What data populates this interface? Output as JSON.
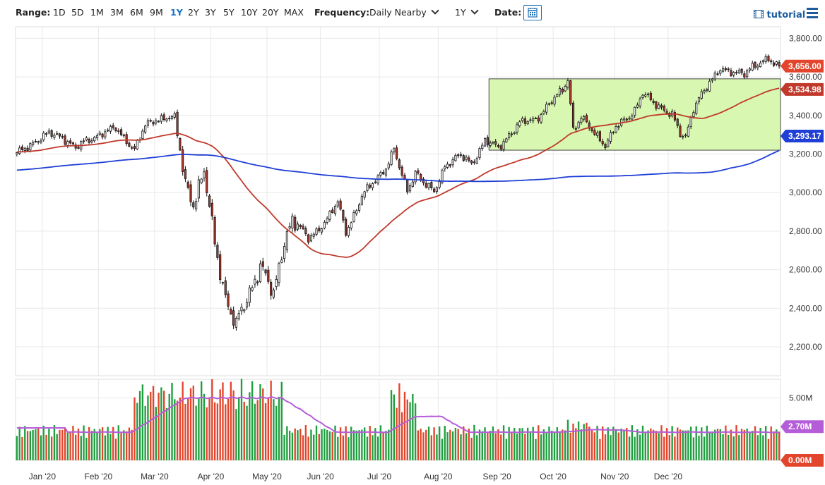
{
  "toolbar": {
    "range_label": "Range:",
    "ranges": [
      "1D",
      "5D",
      "1M",
      "3M",
      "6M",
      "9M",
      "1Y",
      "2Y",
      "3Y",
      "5Y",
      "10Y",
      "20Y",
      "MAX"
    ],
    "active_range": "1Y",
    "frequency_label": "Frequency:",
    "frequency_value": "Daily Nearby",
    "period_value": "1Y",
    "date_label": "Date:",
    "tutorial_label": "tutorial"
  },
  "chart_data": {
    "type": "candlestick",
    "price_axis": {
      "min": 2050,
      "max": 3860,
      "ticks": [
        3800,
        3600,
        3400,
        3200,
        3000,
        2800,
        2600,
        2400,
        2200
      ],
      "tick_labels": [
        "3,800.00",
        "3,600.00",
        "3,400.00",
        "3,200.00",
        "3,000.00",
        "2,800.00",
        "2,600.00",
        "2,400.00",
        "2,200.00"
      ]
    },
    "volume_axis": {
      "min": 0,
      "max": 6.5,
      "tick_label": "5.00M",
      "tick_value": 5.0
    },
    "x_labels": [
      "Jan '20",
      "Feb '20",
      "Mar '20",
      "Apr '20",
      "May '20",
      "Jun '20",
      "Jul '20",
      "Aug '20",
      "Sep '20",
      "Oct '20",
      "Nov '20",
      "Dec '20"
    ],
    "price_anchors": [
      [
        0,
        3200
      ],
      [
        6,
        3260
      ],
      [
        12,
        3305
      ],
      [
        17,
        3290
      ],
      [
        22,
        3230
      ],
      [
        25,
        3260
      ],
      [
        32,
        3310
      ],
      [
        37,
        3332
      ],
      [
        44,
        3225
      ],
      [
        48,
        3345
      ],
      [
        52,
        3380
      ],
      [
        56,
        3390
      ],
      [
        59,
        3385
      ],
      [
        63,
        3050
      ],
      [
        66,
        2950
      ],
      [
        70,
        3100
      ],
      [
        74,
        2740
      ],
      [
        78,
        2460
      ],
      [
        82,
        2300
      ],
      [
        83,
        2350
      ],
      [
        87,
        2480
      ],
      [
        91,
        2630
      ],
      [
        96,
        2460
      ],
      [
        100,
        2760
      ],
      [
        103,
        2860
      ],
      [
        105,
        2830
      ],
      [
        109,
        2760
      ],
      [
        114,
        2830
      ],
      [
        116,
        2860
      ],
      [
        120,
        2950
      ],
      [
        123,
        2800
      ],
      [
        127,
        2910
      ],
      [
        129,
        2980
      ],
      [
        133,
        3050
      ],
      [
        138,
        3130
      ],
      [
        141,
        3220
      ],
      [
        143,
        3130
      ],
      [
        146,
        3010
      ],
      [
        149,
        3110
      ],
      [
        152,
        3050
      ],
      [
        156,
        3000
      ],
      [
        160,
        3140
      ],
      [
        163,
        3170
      ],
      [
        166,
        3190
      ],
      [
        170,
        3150
      ],
      [
        175,
        3270
      ],
      [
        180,
        3230
      ],
      [
        184,
        3300
      ],
      [
        188,
        3360
      ],
      [
        194,
        3380
      ],
      [
        199,
        3460
      ],
      [
        204,
        3530
      ],
      [
        206,
        3590
      ],
      [
        208,
        3330
      ],
      [
        211,
        3390
      ],
      [
        215,
        3320
      ],
      [
        220,
        3250
      ],
      [
        224,
        3340
      ],
      [
        228,
        3380
      ],
      [
        231,
        3430
      ],
      [
        234,
        3520
      ],
      [
        238,
        3460
      ],
      [
        242,
        3430
      ],
      [
        245,
        3410
      ],
      [
        248,
        3300
      ],
      [
        250,
        3280
      ],
      [
        253,
        3440
      ],
      [
        256,
        3520
      ],
      [
        260,
        3580
      ],
      [
        263,
        3640
      ],
      [
        268,
        3630
      ],
      [
        272,
        3610
      ],
      [
        275,
        3650
      ],
      [
        278,
        3680
      ],
      [
        281,
        3700
      ],
      [
        283,
        3660
      ],
      [
        285,
        3656
      ]
    ],
    "series": [
      {
        "name": "",
        "color": "#c0392b",
        "last_value_label": "3,534.98"
      },
      {
        "name": "",
        "color": "#1f3fd6",
        "last_value_label": "3,293.17"
      },
      {
        "name": "",
        "color": "#b55dd8",
        "last_value_label": "2.70M"
      }
    ],
    "last_price_label": "3,656.00",
    "zero_volume_label": "0.00M",
    "range_box": {
      "low": 3220,
      "high": 3590
    },
    "colors": {
      "up": "#1e9e3e",
      "down": "#e2452b",
      "box_fill": "#d8f7b0",
      "grid": "#e8e8e8"
    }
  }
}
